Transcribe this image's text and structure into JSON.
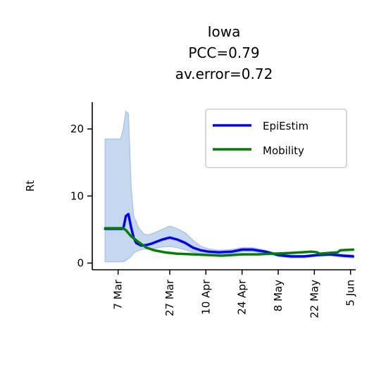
{
  "chart_data": {
    "type": "line",
    "title": [
      "Iowa",
      "PCC=0.79",
      "av.error=0.72"
    ],
    "ylabel": "Rt",
    "xlabel": "",
    "ylim": [
      -1,
      24
    ],
    "xlim": [
      "2020-02-26",
      "2020-06-07"
    ],
    "y_ticks": [
      0,
      10,
      20
    ],
    "x_ticks": [
      {
        "date": "2020-03-07",
        "label": "7 Mar"
      },
      {
        "date": "2020-03-27",
        "label": "27 Mar"
      },
      {
        "date": "2020-04-10",
        "label": "10 Apr"
      },
      {
        "date": "2020-04-24",
        "label": "24 Apr"
      },
      {
        "date": "2020-05-08",
        "label": "8 May"
      },
      {
        "date": "2020-05-22",
        "label": "22 May"
      },
      {
        "date": "2020-06-05",
        "label": "5 Jun"
      }
    ],
    "grid": false,
    "legend_position": "upper right",
    "series": [
      {
        "name": "EpiEstim",
        "color": "#0000ff",
        "x": [
          "2020-03-02",
          "2020-03-09",
          "2020-03-10",
          "2020-03-11",
          "2020-03-12",
          "2020-03-13",
          "2020-03-14",
          "2020-03-16",
          "2020-03-18",
          "2020-03-20",
          "2020-03-22",
          "2020-03-24",
          "2020-03-27",
          "2020-03-30",
          "2020-04-02",
          "2020-04-05",
          "2020-04-08",
          "2020-04-11",
          "2020-04-15",
          "2020-04-20",
          "2020-04-24",
          "2020-04-28",
          "2020-05-03",
          "2020-05-08",
          "2020-05-13",
          "2020-05-18",
          "2020-05-23",
          "2020-05-28",
          "2020-06-02",
          "2020-06-06"
        ],
        "values": [
          5.1,
          5.1,
          7.0,
          7.3,
          5.4,
          3.8,
          3.0,
          2.6,
          2.7,
          2.9,
          3.2,
          3.5,
          3.8,
          3.5,
          3.0,
          2.3,
          1.9,
          1.7,
          1.6,
          1.7,
          2.0,
          2.0,
          1.7,
          1.2,
          1.0,
          1.0,
          1.2,
          1.3,
          1.1,
          1.0
        ]
      },
      {
        "name": "Mobility",
        "color": "#008000",
        "x": [
          "2020-03-02",
          "2020-03-09",
          "2020-03-10",
          "2020-03-12",
          "2020-03-15",
          "2020-03-18",
          "2020-03-21",
          "2020-03-25",
          "2020-03-30",
          "2020-04-05",
          "2020-04-11",
          "2020-04-16",
          "2020-04-20",
          "2020-04-24",
          "2020-04-30",
          "2020-05-06",
          "2020-05-12",
          "2020-05-17",
          "2020-05-21",
          "2020-05-23",
          "2020-05-24",
          "2020-05-27",
          "2020-05-31",
          "2020-06-01",
          "2020-06-06"
        ],
        "values": [
          5.2,
          5.2,
          4.9,
          4.0,
          3.1,
          2.3,
          1.9,
          1.6,
          1.4,
          1.3,
          1.2,
          1.1,
          1.2,
          1.3,
          1.3,
          1.4,
          1.5,
          1.6,
          1.7,
          1.6,
          1.4,
          1.5,
          1.6,
          1.9,
          2.0
        ]
      }
    ],
    "confidence_band": {
      "series": "EpiEstim",
      "color": "#aec7e8",
      "x": [
        "2020-03-02",
        "2020-03-08",
        "2020-03-09",
        "2020-03-10",
        "2020-03-11",
        "2020-03-12",
        "2020-03-13",
        "2020-03-15",
        "2020-03-17",
        "2020-03-19",
        "2020-03-21",
        "2020-03-24",
        "2020-03-27",
        "2020-03-30",
        "2020-04-02",
        "2020-04-05",
        "2020-04-08",
        "2020-04-11",
        "2020-04-15",
        "2020-04-20",
        "2020-04-24",
        "2020-04-28",
        "2020-05-03",
        "2020-05-08",
        "2020-05-13",
        "2020-05-18",
        "2020-05-23",
        "2020-05-28",
        "2020-06-02",
        "2020-06-06"
      ],
      "upper": [
        18.5,
        18.5,
        20.0,
        22.6,
        22.3,
        11.5,
        7.0,
        5.2,
        4.3,
        4.2,
        4.5,
        5.0,
        5.5,
        5.1,
        4.5,
        3.4,
        2.5,
        2.1,
        1.9,
        2.0,
        2.3,
        2.3,
        1.9,
        1.4,
        1.2,
        1.1,
        1.3,
        1.4,
        1.3,
        1.2
      ],
      "lower": [
        0.2,
        0.2,
        0.2,
        0.4,
        0.7,
        1.0,
        1.5,
        1.9,
        2.1,
        2.1,
        2.2,
        2.4,
        2.5,
        2.3,
        2.0,
        1.6,
        1.4,
        1.3,
        1.3,
        1.4,
        1.7,
        1.7,
        1.5,
        1.0,
        0.8,
        0.8,
        1.0,
        1.1,
        0.9,
        0.8
      ]
    }
  }
}
